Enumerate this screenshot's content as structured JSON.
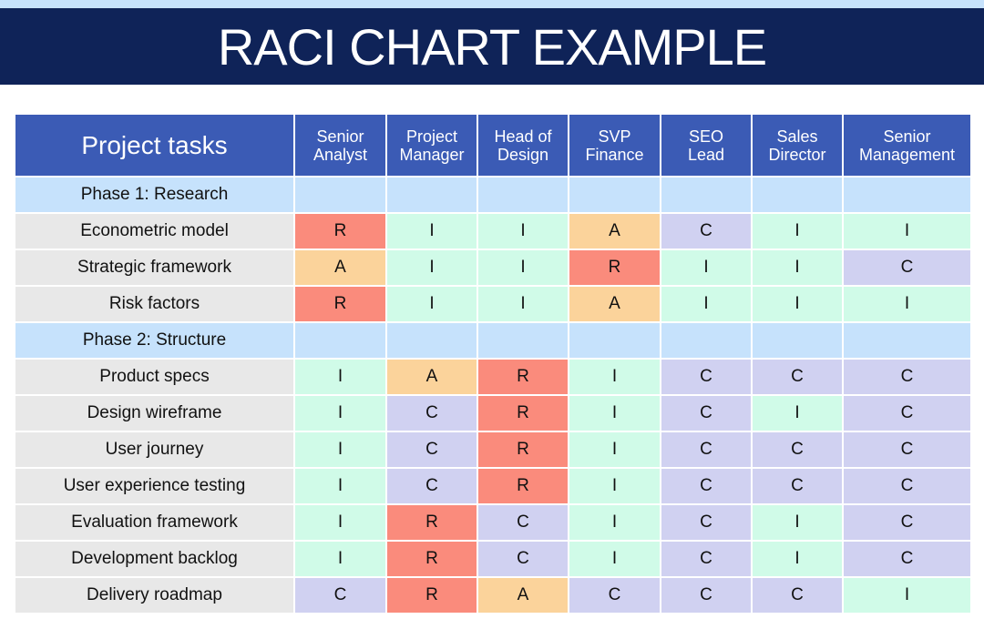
{
  "title": "RACI CHART EXAMPLE",
  "colors": {
    "banner": "#0f2358",
    "top_strip": "#c6e2fc",
    "header": "#3b5bb5",
    "phase": "#c6e2fc",
    "task_label": "#e8e8e8",
    "R": "#fa8b7c",
    "A": "#fbd39b",
    "C": "#d0d1f1",
    "I": "#d0fbe8"
  },
  "table": {
    "task_header": "Project tasks",
    "roles": [
      "Senior Analyst",
      "Project Manager",
      "Head of Design",
      "SVP Finance",
      "SEO Lead",
      "Sales Director",
      "Senior Management"
    ],
    "phases": [
      {
        "label": "Phase 1: Research",
        "tasks": [
          {
            "name": "Econometric model",
            "values": [
              "R",
              "I",
              "I",
              "A",
              "C",
              "I",
              "I"
            ]
          },
          {
            "name": "Strategic framework",
            "values": [
              "A",
              "I",
              "I",
              "R",
              "I",
              "I",
              "C"
            ]
          },
          {
            "name": "Risk factors",
            "values": [
              "R",
              "I",
              "I",
              "A",
              "I",
              "I",
              "I"
            ]
          }
        ]
      },
      {
        "label": "Phase 2: Structure",
        "tasks": [
          {
            "name": "Product specs",
            "values": [
              "I",
              "A",
              "R",
              "I",
              "C",
              "C",
              "C"
            ]
          },
          {
            "name": "Design wireframe",
            "values": [
              "I",
              "C",
              "R",
              "I",
              "C",
              "I",
              "C"
            ]
          },
          {
            "name": "User journey",
            "values": [
              "I",
              "C",
              "R",
              "I",
              "C",
              "C",
              "C"
            ]
          },
          {
            "name": "User experience testing",
            "values": [
              "I",
              "C",
              "R",
              "I",
              "C",
              "C",
              "C"
            ]
          },
          {
            "name": "Evaluation framework",
            "values": [
              "I",
              "R",
              "C",
              "I",
              "C",
              "I",
              "C"
            ]
          },
          {
            "name": "Development backlog",
            "values": [
              "I",
              "R",
              "C",
              "I",
              "C",
              "I",
              "C"
            ]
          },
          {
            "name": "Delivery roadmap",
            "values": [
              "C",
              "R",
              "A",
              "C",
              "C",
              "C",
              "I"
            ]
          }
        ]
      }
    ]
  }
}
